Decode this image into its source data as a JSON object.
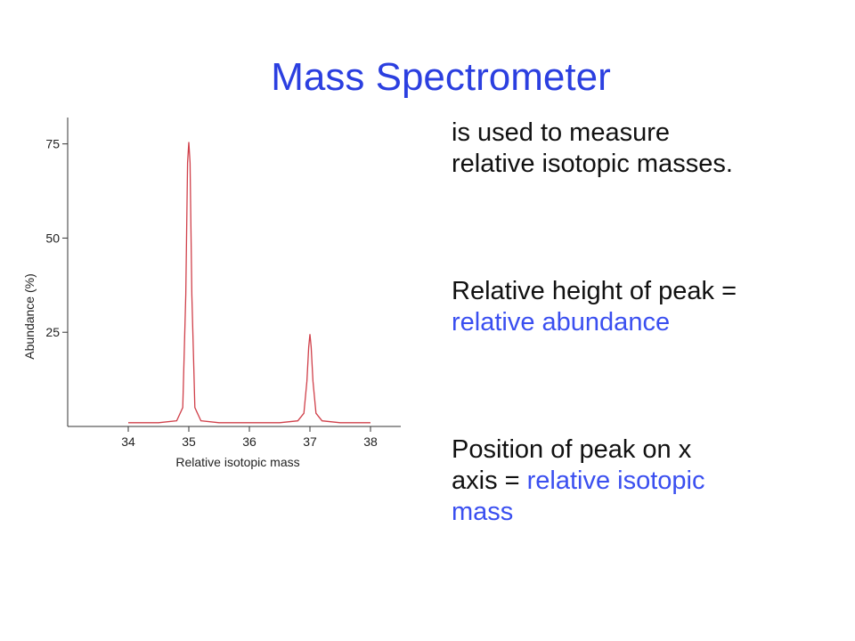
{
  "slide": {
    "title": "Mass Spectrometer"
  },
  "text": {
    "intro_line1": "is used to measure",
    "intro_line2": "relative isotopic masses.",
    "height_line1": "Relative height of peak =",
    "height_line2": "relative abundance",
    "position_line1": "Position of peak on x",
    "position_line2_prefix": "axis = ",
    "position_line2_hl": "relative isotopic",
    "position_line3": "mass"
  },
  "colors": {
    "title": "#2b3fe0",
    "highlight": "#3a4ff0",
    "peak_line": "#d0404a"
  },
  "chart_data": {
    "type": "line",
    "title": "",
    "xlabel": "Relative isotopic mass",
    "ylabel": "Abundance (%)",
    "xlim": [
      33.0,
      38.5
    ],
    "ylim": [
      0,
      82
    ],
    "x_ticks": [
      34,
      35,
      36,
      37,
      38
    ],
    "y_ticks": [
      25,
      50,
      75
    ],
    "grid": false,
    "series": [
      {
        "x": [
          34.0,
          34.5,
          34.8,
          34.9,
          34.95,
          34.98,
          35.0,
          35.02,
          35.05,
          35.1,
          35.2,
          35.5,
          36.0,
          36.5,
          36.8,
          36.9,
          36.95,
          36.98,
          37.0,
          37.02,
          37.05,
          37.1,
          37.2,
          37.5,
          38.0
        ],
        "y": [
          1,
          1,
          1.5,
          5,
          35,
          70,
          75.5,
          70,
          35,
          5,
          1.5,
          1,
          1,
          1,
          1.5,
          3.5,
          12,
          21,
          24.5,
          21,
          12,
          3.5,
          1.5,
          1,
          1
        ]
      }
    ]
  }
}
